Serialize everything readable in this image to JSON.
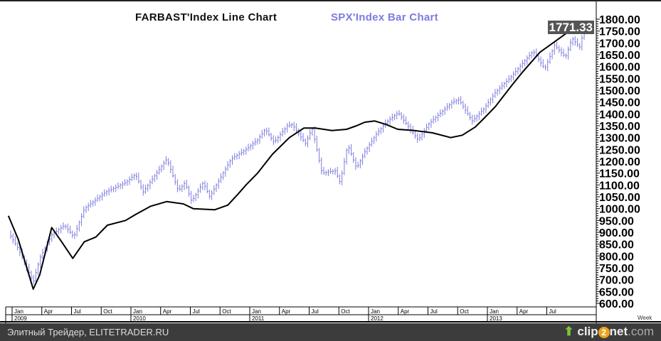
{
  "chart_data": {
    "type": "line",
    "title_line": "FARBAST'Index  Line  Chart",
    "title_bar": "SPX'Index  Bar  Chart",
    "ylim": [
      600,
      1800
    ],
    "yticks": [
      "1800.00",
      "1750.00",
      "1700.00",
      "1650.00",
      "1600.00",
      "1550.00",
      "1500.00",
      "1450.00",
      "1400.00",
      "1350.00",
      "1300.00",
      "1250.00",
      "1200.00",
      "1150.00",
      "1100.00",
      "1050.00",
      "1000.00",
      "950.00",
      "900.00",
      "850.00",
      "800.00",
      "750.00",
      "700.00",
      "650.00",
      "600.00"
    ],
    "last_value": "1771.33",
    "x_period": "Week",
    "xticks": [
      {
        "label": "Jan",
        "year": "2009",
        "date": "2009-01-01"
      },
      {
        "label": "Apr",
        "date": "2009-04-01"
      },
      {
        "label": "Jul",
        "date": "2009-07-01"
      },
      {
        "label": "Oct",
        "date": "2009-10-01"
      },
      {
        "label": "Jan",
        "year": "2010",
        "date": "2010-01-01"
      },
      {
        "label": "Apr",
        "date": "2010-04-01"
      },
      {
        "label": "Jul",
        "date": "2010-07-01"
      },
      {
        "label": "Oct",
        "date": "2010-10-01"
      },
      {
        "label": "Jan",
        "year": "2011",
        "date": "2011-01-01"
      },
      {
        "label": "Apr",
        "date": "2011-04-01"
      },
      {
        "label": "Jul",
        "date": "2011-07-01"
      },
      {
        "label": "Oct",
        "date": "2011-10-01"
      },
      {
        "label": "Jan",
        "year": "2012",
        "date": "2012-01-01"
      },
      {
        "label": "Apr",
        "date": "2012-04-01"
      },
      {
        "label": "Jul",
        "date": "2012-07-01"
      },
      {
        "label": "Oct",
        "date": "2012-10-01"
      },
      {
        "label": "Jan",
        "year": "2013",
        "date": "2013-01-01"
      },
      {
        "label": "Apr",
        "date": "2013-04-01"
      },
      {
        "label": "Jul",
        "date": "2013-07-01"
      }
    ],
    "series": [
      {
        "name": "SPX'Index",
        "style": "bar",
        "color": "#7c7ce0",
        "points": [
          [
            "2008-12-20",
            900
          ],
          [
            "2009-01-20",
            830
          ],
          [
            "2009-03-05",
            690
          ],
          [
            "2009-03-25",
            790
          ],
          [
            "2009-05-01",
            890
          ],
          [
            "2009-06-10",
            930
          ],
          [
            "2009-07-08",
            880
          ],
          [
            "2009-08-10",
            1000
          ],
          [
            "2009-10-15",
            1070
          ],
          [
            "2009-12-15",
            1110
          ],
          [
            "2010-01-15",
            1145
          ],
          [
            "2010-02-08",
            1070
          ],
          [
            "2010-04-20",
            1210
          ],
          [
            "2010-05-25",
            1075
          ],
          [
            "2010-06-15",
            1110
          ],
          [
            "2010-07-05",
            1030
          ],
          [
            "2010-08-10",
            1110
          ],
          [
            "2010-08-30",
            1050
          ],
          [
            "2010-11-05",
            1210
          ],
          [
            "2010-12-20",
            1250
          ],
          [
            "2011-01-25",
            1290
          ],
          [
            "2011-02-18",
            1335
          ],
          [
            "2011-03-15",
            1280
          ],
          [
            "2011-04-25",
            1350
          ],
          [
            "2011-05-10",
            1355
          ],
          [
            "2011-06-20",
            1275
          ],
          [
            "2011-07-10",
            1340
          ],
          [
            "2011-08-10",
            1150
          ],
          [
            "2011-09-20",
            1160
          ],
          [
            "2011-10-05",
            1110
          ],
          [
            "2011-10-28",
            1270
          ],
          [
            "2011-11-25",
            1170
          ],
          [
            "2011-12-20",
            1240
          ],
          [
            "2012-01-25",
            1315
          ],
          [
            "2012-02-25",
            1365
          ],
          [
            "2012-04-01",
            1405
          ],
          [
            "2012-06-01",
            1290
          ],
          [
            "2012-07-05",
            1360
          ],
          [
            "2012-09-15",
            1450
          ],
          [
            "2012-10-05",
            1460
          ],
          [
            "2012-11-15",
            1370
          ],
          [
            "2012-12-20",
            1420
          ],
          [
            "2013-01-25",
            1490
          ],
          [
            "2013-03-15",
            1560
          ],
          [
            "2013-05-20",
            1665
          ],
          [
            "2013-06-25",
            1590
          ],
          [
            "2013-07-25",
            1690
          ],
          [
            "2013-08-28",
            1640
          ],
          [
            "2013-09-18",
            1720
          ],
          [
            "2013-10-10",
            1680
          ],
          [
            "2013-10-25",
            1760
          ]
        ]
      },
      {
        "name": "FARBAST'Index",
        "style": "line",
        "color": "#000000",
        "points": [
          [
            "2008-12-20",
            970
          ],
          [
            "2009-01-20",
            870
          ],
          [
            "2009-03-05",
            660
          ],
          [
            "2009-03-25",
            720
          ],
          [
            "2009-05-01",
            920
          ],
          [
            "2009-06-01",
            860
          ],
          [
            "2009-07-05",
            790
          ],
          [
            "2009-08-10",
            860
          ],
          [
            "2009-09-15",
            880
          ],
          [
            "2009-10-20",
            930
          ],
          [
            "2009-12-15",
            950
          ],
          [
            "2010-01-15",
            975
          ],
          [
            "2010-03-01",
            1010
          ],
          [
            "2010-04-20",
            1030
          ],
          [
            "2010-06-10",
            1020
          ],
          [
            "2010-07-10",
            1000
          ],
          [
            "2010-09-15",
            995
          ],
          [
            "2010-10-25",
            1015
          ],
          [
            "2010-11-25",
            1060
          ],
          [
            "2010-12-20",
            1100
          ],
          [
            "2011-01-25",
            1150
          ],
          [
            "2011-03-10",
            1230
          ],
          [
            "2011-05-01",
            1300
          ],
          [
            "2011-06-15",
            1340
          ],
          [
            "2011-07-20",
            1340
          ],
          [
            "2011-09-10",
            1330
          ],
          [
            "2011-10-25",
            1335
          ],
          [
            "2011-11-25",
            1350
          ],
          [
            "2011-12-20",
            1365
          ],
          [
            "2012-01-20",
            1370
          ],
          [
            "2012-02-25",
            1355
          ],
          [
            "2012-03-30",
            1335
          ],
          [
            "2012-05-20",
            1330
          ],
          [
            "2012-07-15",
            1320
          ],
          [
            "2012-09-10",
            1300
          ],
          [
            "2012-10-15",
            1310
          ],
          [
            "2012-11-25",
            1345
          ],
          [
            "2012-12-20",
            1380
          ],
          [
            "2013-01-25",
            1430
          ],
          [
            "2013-03-15",
            1520
          ],
          [
            "2013-04-20",
            1580
          ],
          [
            "2013-06-10",
            1660
          ],
          [
            "2013-08-10",
            1720
          ],
          [
            "2013-09-20",
            1760
          ],
          [
            "2013-10-15",
            1780
          ],
          [
            "2013-10-25",
            1775
          ]
        ]
      }
    ]
  },
  "footer": {
    "source_text": "Элитный Трейдер, ELITETRADER.RU",
    "logo_text": "clip2net.com"
  }
}
